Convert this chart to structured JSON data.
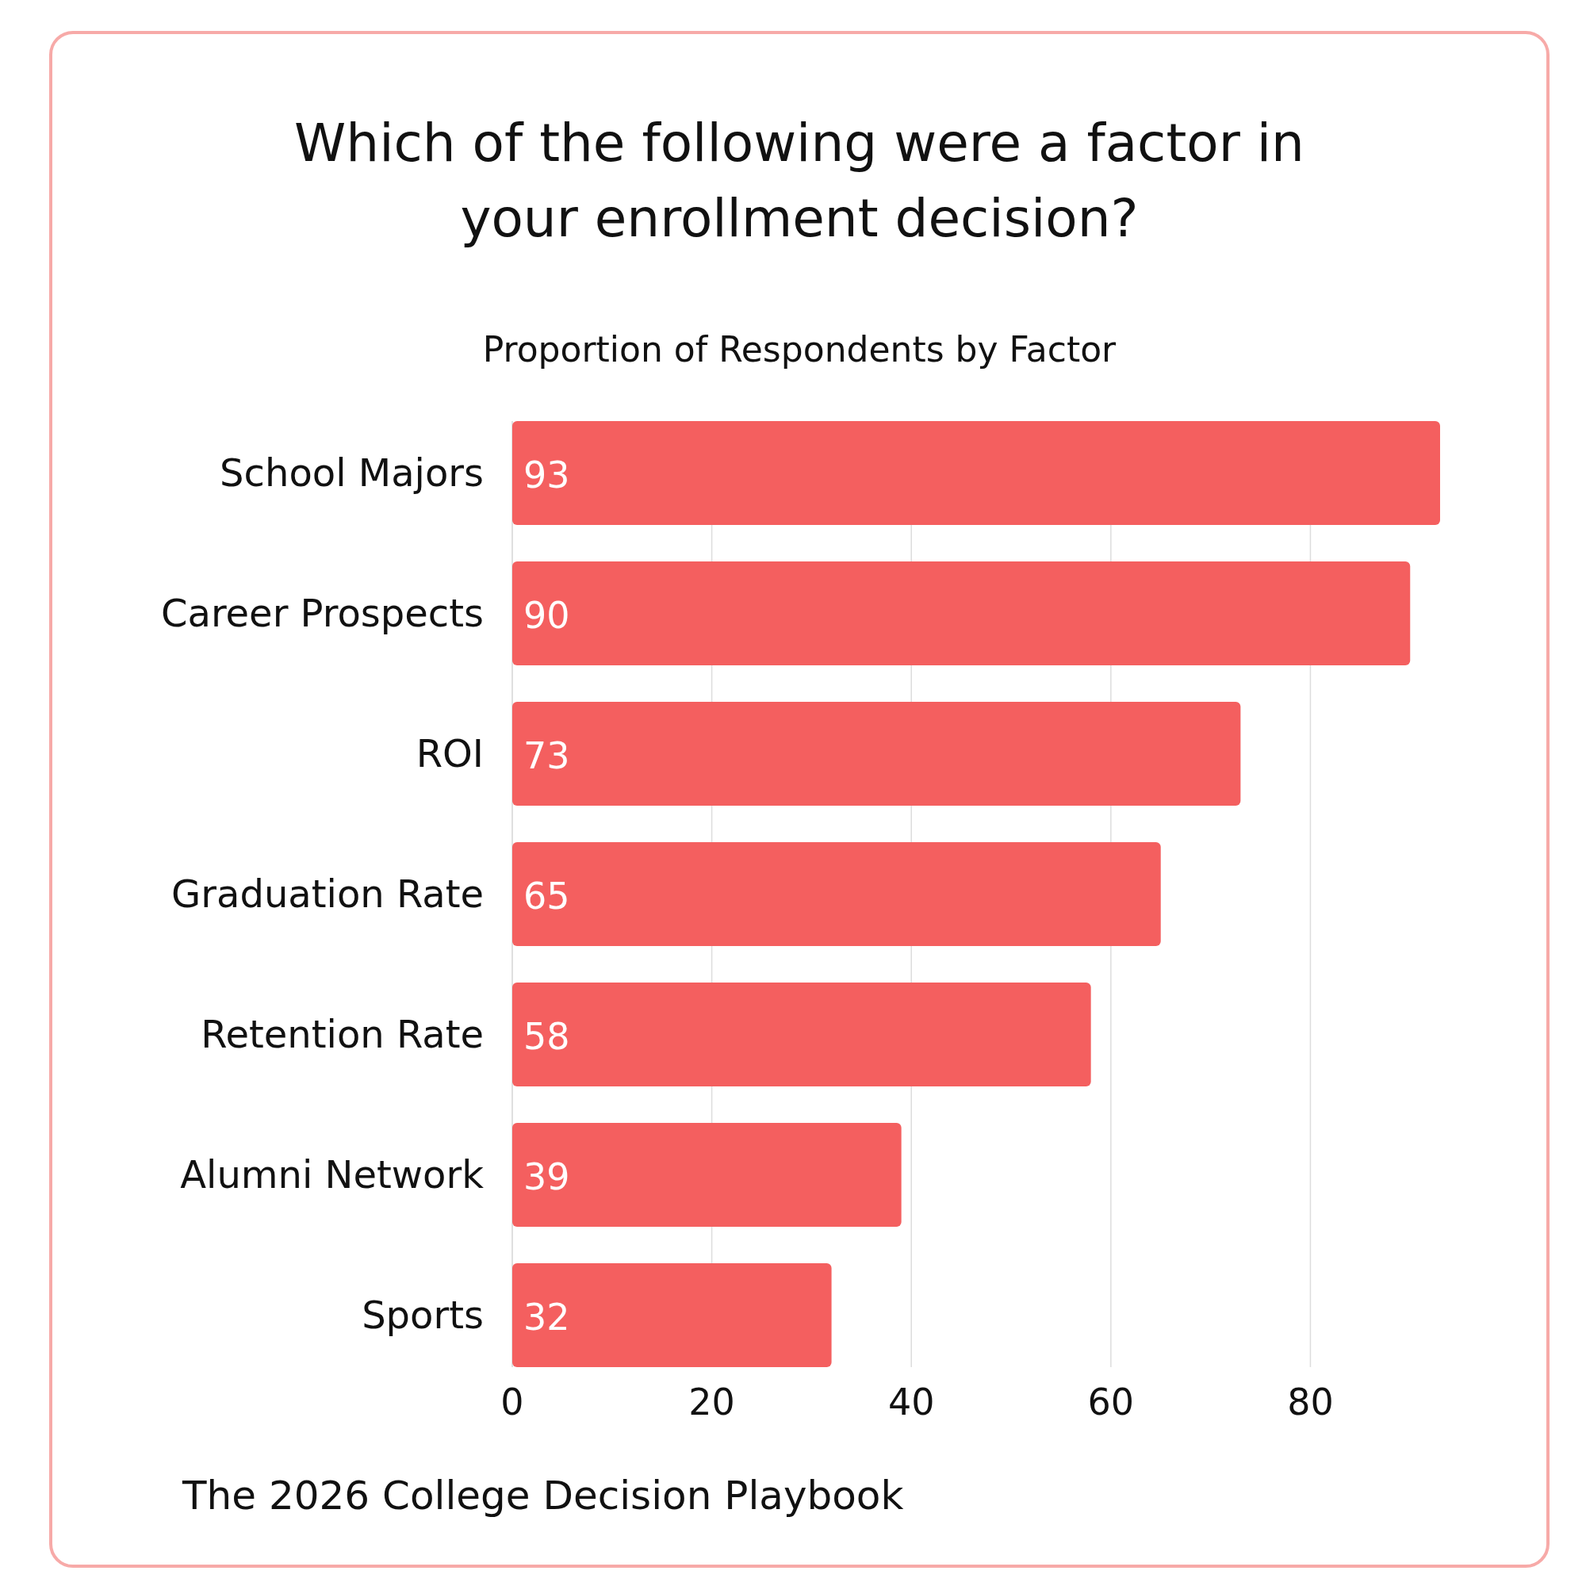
{
  "chart_data": {
    "type": "bar",
    "orientation": "horizontal",
    "title": "Which of the following were a factor in your enrollment decision?",
    "subtitle": "Proportion of Respondents by Factor",
    "categories": [
      "School Majors",
      "Career Prospects",
      "ROI",
      "Graduation Rate",
      "Retention Rate",
      "Alumni Network",
      "Sports"
    ],
    "values": [
      93,
      90,
      73,
      65,
      58,
      39,
      32
    ],
    "color": "#f45f5f",
    "xlim": [
      0,
      93
    ],
    "xticks": [
      0,
      20,
      40,
      60,
      80
    ],
    "grid": "x",
    "data_labels": true,
    "annotations": [
      "The 2026 College Decision Playbook"
    ]
  }
}
